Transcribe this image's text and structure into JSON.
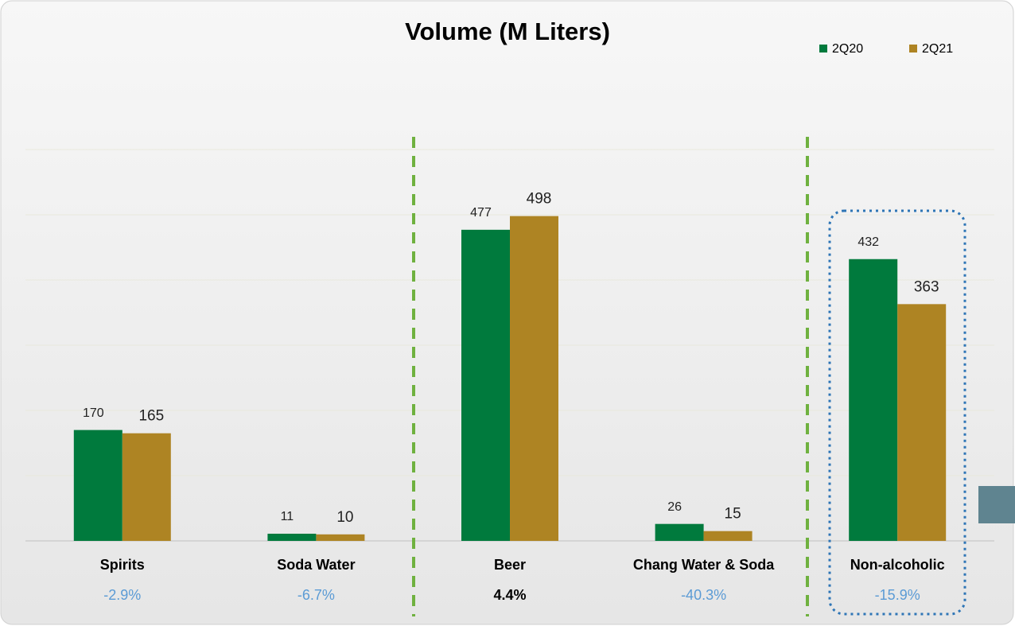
{
  "chart_data": {
    "type": "bar",
    "title": "Volume (M Liters)",
    "categories": [
      "Spirits",
      "Soda Water",
      "Beer",
      "Chang Water &  Soda",
      "Non-alcoholic"
    ],
    "series": [
      {
        "name": "2Q20",
        "color": "#007a3d",
        "values": [
          170,
          11,
          477,
          26,
          432
        ]
      },
      {
        "name": "2Q21",
        "color": "#ae8423",
        "values": [
          165,
          10,
          498,
          15,
          363
        ]
      }
    ],
    "annotations": [
      {
        "text": "-2.9%",
        "color": "#5b9bd5"
      },
      {
        "text": "-6.7%",
        "color": "#5b9bd5"
      },
      {
        "text": "4.4%",
        "color": "#000000"
      },
      {
        "text": "-40.3%",
        "color": "#5b9bd5"
      },
      {
        "text": "-15.9%",
        "color": "#5b9bd5"
      }
    ],
    "ylim": [
      0,
      600
    ],
    "yticks": [
      0,
      100,
      200,
      300,
      400,
      500,
      600
    ],
    "grid": true,
    "legend": "top-right"
  }
}
